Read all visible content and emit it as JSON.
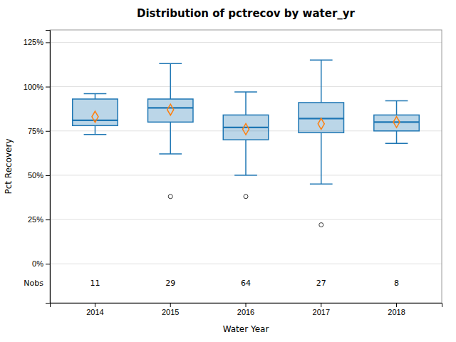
{
  "chart_data": {
    "type": "box",
    "title": "Distribution of pctrecov by water_yr",
    "x_label": "Water Year",
    "y_label": "Pct Recovery",
    "categories": [
      "2014",
      "2015",
      "2016",
      "2017",
      "2018"
    ],
    "boxes": [
      {
        "q1": 78,
        "median": 81,
        "q3": 93,
        "whislo": 73,
        "whishi": 96,
        "mean": 83,
        "fliers": []
      },
      {
        "q1": 80,
        "median": 88,
        "q3": 93,
        "whislo": 62,
        "whishi": 113,
        "mean": 87,
        "fliers": [
          38
        ]
      },
      {
        "q1": 70,
        "median": 77,
        "q3": 84,
        "whislo": 50,
        "whishi": 97,
        "mean": 76,
        "fliers": [
          38
        ]
      },
      {
        "q1": 74,
        "median": 82,
        "q3": 91,
        "whislo": 45,
        "whishi": 115,
        "mean": 79,
        "fliers": [
          22
        ]
      },
      {
        "q1": 75,
        "median": 80,
        "q3": 84,
        "whislo": 68,
        "whishi": 92,
        "mean": 80,
        "fliers": []
      }
    ],
    "nobs_label": "Nobs",
    "nobs": [
      11,
      29,
      64,
      27,
      8
    ],
    "ylim": [
      -22,
      132
    ],
    "yticks": [
      {
        "value": 0,
        "label": "0%"
      },
      {
        "value": 25,
        "label": "25%"
      },
      {
        "value": 50,
        "label": "50%"
      },
      {
        "value": 75,
        "label": "75%"
      },
      {
        "value": 100,
        "label": "100%"
      },
      {
        "value": 125,
        "label": "125%"
      }
    ],
    "grid": true
  }
}
